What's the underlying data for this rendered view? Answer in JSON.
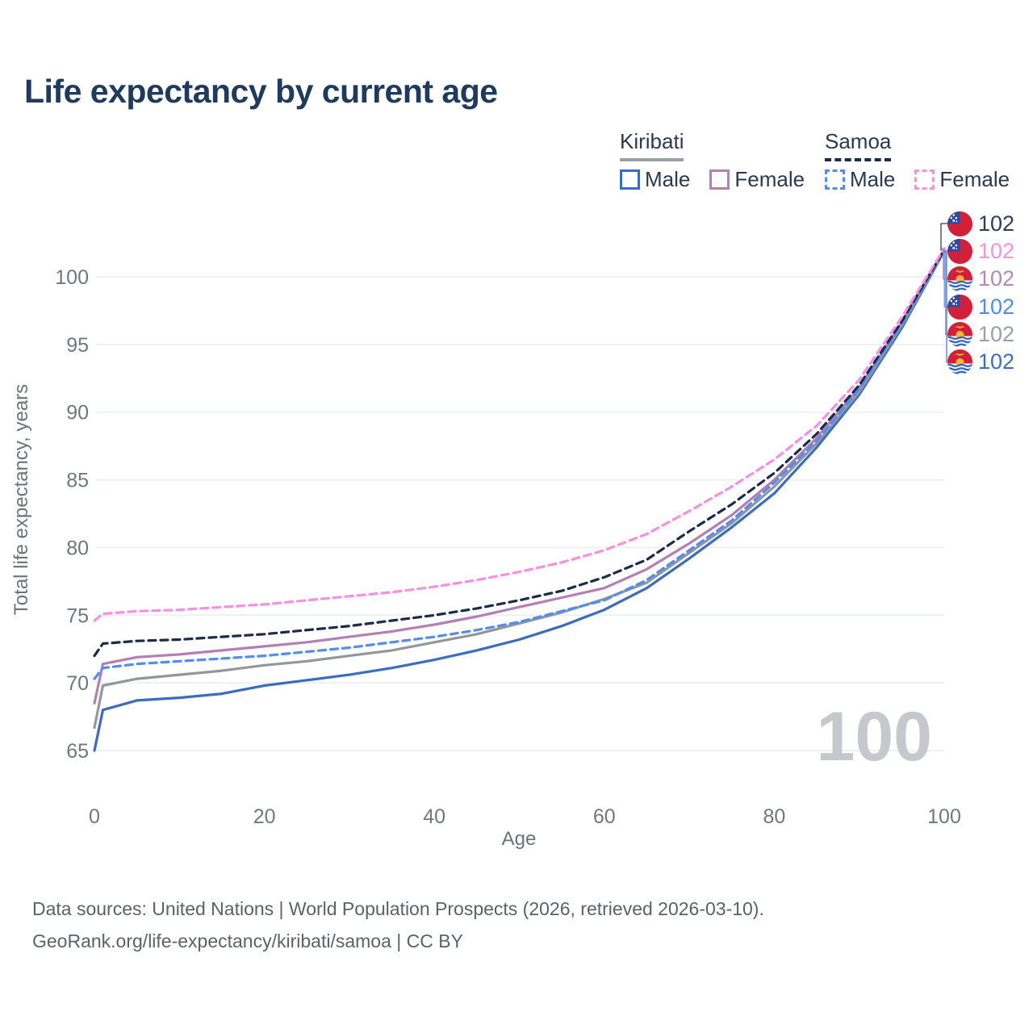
{
  "title": "Life expectancy by current age",
  "legend": {
    "kiribati": {
      "title": "Kiribati",
      "male": "Male",
      "female": "Female"
    },
    "samoa": {
      "title": "Samoa",
      "male": "Male",
      "female": "Female"
    }
  },
  "watermark": "100",
  "footer": {
    "line1": "Data sources: United Nations | World Population Prospects (2026, retrieved 2026-03-10).",
    "line2": "GeoRank.org/life-expectancy/kiribati/samoa | CC BY"
  },
  "chart_data": {
    "type": "line",
    "title": "Life expectancy by current age",
    "xlabel": "Age",
    "ylabel": "Total life expectancy, years",
    "xlim": [
      0,
      100
    ],
    "ylim": [
      65,
      102.5
    ],
    "xticks": [
      0,
      20,
      40,
      60,
      80,
      100
    ],
    "yticks": [
      65,
      70,
      75,
      80,
      85,
      90,
      95,
      100
    ],
    "grid": "horizontal-only",
    "legend_position": "top-right",
    "ages": [
      0,
      1,
      5,
      10,
      15,
      20,
      25,
      30,
      35,
      40,
      45,
      50,
      55,
      60,
      65,
      70,
      75,
      80,
      85,
      90,
      95,
      100
    ],
    "series": [
      {
        "name": "kiribati_male",
        "country": "Kiribati",
        "sex": "Male",
        "style": "solid",
        "color": "#3c6cc0",
        "values": [
          65.0,
          68.0,
          68.7,
          68.9,
          69.2,
          69.8,
          70.2,
          70.6,
          71.1,
          71.7,
          72.4,
          73.2,
          74.2,
          75.4,
          77.0,
          79.2,
          81.5,
          84.0,
          87.4,
          91.3,
          96.2,
          101.9
        ]
      },
      {
        "name": "kiribati_all",
        "country": "Kiribati",
        "sex": "Both",
        "style": "solid",
        "color": "#93979c",
        "values": [
          66.7,
          69.8,
          70.3,
          70.6,
          70.9,
          71.3,
          71.6,
          72.0,
          72.4,
          73.0,
          73.6,
          74.4,
          75.2,
          76.2,
          77.4,
          79.6,
          81.8,
          84.5,
          87.7,
          91.5,
          96.4,
          101.9
        ]
      },
      {
        "name": "kiribati_female",
        "country": "Kiribati",
        "sex": "Female",
        "style": "solid",
        "color": "#b47fb2",
        "values": [
          68.5,
          71.4,
          71.9,
          72.1,
          72.4,
          72.7,
          73.0,
          73.4,
          73.8,
          74.3,
          74.9,
          75.6,
          76.3,
          77.0,
          78.4,
          80.3,
          82.4,
          85.0,
          88.1,
          91.8,
          96.6,
          102.0
        ]
      },
      {
        "name": "samoa_male",
        "country": "Samoa",
        "sex": "Male",
        "style": "dashed",
        "color": "#538df2",
        "values": [
          70.3,
          71.1,
          71.4,
          71.6,
          71.8,
          72.0,
          72.3,
          72.6,
          73.0,
          73.4,
          73.9,
          74.5,
          75.3,
          76.1,
          77.6,
          79.8,
          82.0,
          84.8,
          87.9,
          91.7,
          96.5,
          101.9
        ]
      },
      {
        "name": "samoa_all",
        "country": "Samoa",
        "sex": "Both",
        "style": "dashed",
        "color": "#1d2b49",
        "values": [
          72.0,
          72.9,
          73.1,
          73.2,
          73.4,
          73.6,
          73.9,
          74.2,
          74.6,
          75.0,
          75.5,
          76.1,
          76.8,
          77.8,
          79.1,
          81.2,
          83.2,
          85.5,
          88.4,
          92.0,
          96.7,
          102.0
        ]
      },
      {
        "name": "samoa_female",
        "country": "Samoa",
        "sex": "Female",
        "style": "dashed",
        "color": "#fb8fe1",
        "values": [
          74.6,
          75.1,
          75.3,
          75.4,
          75.6,
          75.8,
          76.1,
          76.4,
          76.7,
          77.1,
          77.6,
          78.2,
          78.9,
          79.8,
          81.0,
          82.7,
          84.5,
          86.5,
          89.0,
          92.4,
          97.0,
          102.1
        ]
      }
    ],
    "end_labels": [
      {
        "country": "samoa",
        "series": "samoa_all",
        "value": "102",
        "color": "#2c3e59"
      },
      {
        "country": "samoa",
        "series": "samoa_female",
        "value": "102",
        "color": "#fc8fe3"
      },
      {
        "country": "kiribati",
        "series": "kiribati_female",
        "value": "102",
        "color": "#b48ab8"
      },
      {
        "country": "samoa",
        "series": "samoa_male",
        "value": "102",
        "color": "#4d8cf5"
      },
      {
        "country": "kiribati",
        "series": "kiribati_all",
        "value": "102",
        "color": "#9ba0a6"
      },
      {
        "country": "kiribati",
        "series": "kiribati_male",
        "value": "102",
        "color": "#3d6dc2"
      }
    ]
  }
}
